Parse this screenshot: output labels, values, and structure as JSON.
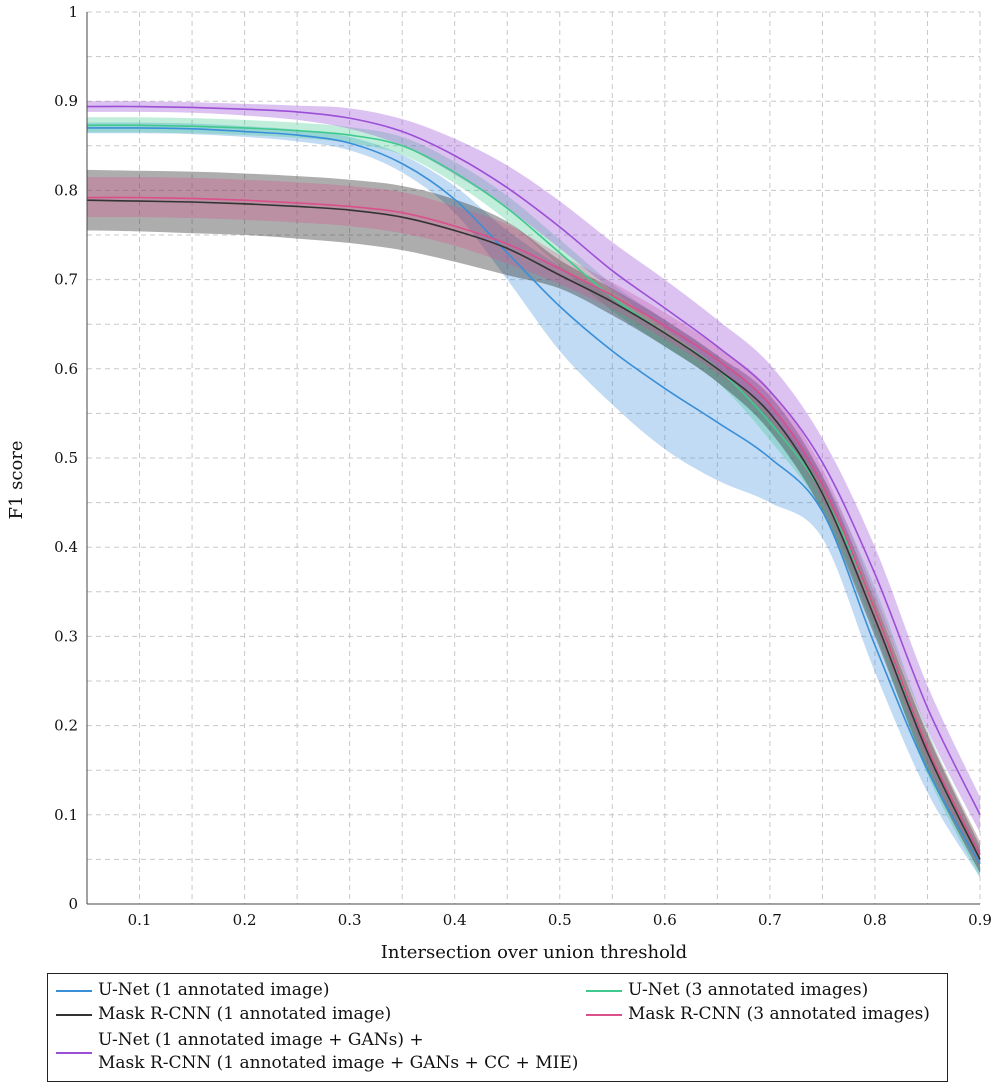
{
  "chart_data": {
    "type": "line",
    "xlabel": "Intersection over union threshold",
    "ylabel": "F1 score",
    "xlim": [
      0.05,
      0.9
    ],
    "ylim": [
      0,
      1
    ],
    "xticks": [
      0.1,
      0.2,
      0.3,
      0.4,
      0.5,
      0.6,
      0.7,
      0.8,
      0.9
    ],
    "xtick_labels": [
      "0.1",
      "0.2",
      "0.3",
      "0.4",
      "0.5",
      "0.6",
      "0.7",
      "0.8",
      "0.9"
    ],
    "yticks": [
      0,
      0.1,
      0.2,
      0.3,
      0.4,
      0.5,
      0.6,
      0.7,
      0.8,
      0.9,
      1
    ],
    "ytick_labels": [
      "0",
      "0.1",
      "0.2",
      "0.3",
      "0.4",
      "0.5",
      "0.6",
      "0.7",
      "0.8",
      "0.9",
      "1"
    ],
    "grid": true,
    "legend_position": "bottom",
    "x": [
      0.05,
      0.1,
      0.15,
      0.2,
      0.25,
      0.3,
      0.35,
      0.4,
      0.45,
      0.5,
      0.55,
      0.6,
      0.65,
      0.7,
      0.75,
      0.8,
      0.85,
      0.9
    ],
    "series": [
      {
        "name": "U-Net (1 annotated image)",
        "color": "#3a8fd9",
        "values": [
          0.87,
          0.87,
          0.869,
          0.866,
          0.862,
          0.853,
          0.83,
          0.79,
          0.73,
          0.67,
          0.62,
          0.578,
          0.54,
          0.5,
          0.44,
          0.29,
          0.15,
          0.045
        ],
        "band_lower": [
          0.864,
          0.864,
          0.863,
          0.86,
          0.855,
          0.845,
          0.82,
          0.775,
          0.7,
          0.62,
          0.56,
          0.51,
          0.475,
          0.45,
          0.41,
          0.26,
          0.125,
          0.03
        ],
        "band_upper": [
          0.876,
          0.876,
          0.875,
          0.872,
          0.868,
          0.86,
          0.84,
          0.805,
          0.755,
          0.715,
          0.68,
          0.64,
          0.6,
          0.55,
          0.47,
          0.32,
          0.175,
          0.06
        ]
      },
      {
        "name": "U-Net (3 annotated images)",
        "color": "#3fc98e",
        "values": [
          0.873,
          0.873,
          0.872,
          0.87,
          0.867,
          0.862,
          0.85,
          0.82,
          0.78,
          0.73,
          0.68,
          0.64,
          0.6,
          0.54,
          0.46,
          0.33,
          0.17,
          0.05
        ],
        "band_lower": [
          0.865,
          0.865,
          0.864,
          0.862,
          0.859,
          0.853,
          0.84,
          0.808,
          0.766,
          0.715,
          0.665,
          0.625,
          0.585,
          0.52,
          0.44,
          0.305,
          0.145,
          0.03
        ],
        "band_upper": [
          0.882,
          0.882,
          0.881,
          0.879,
          0.876,
          0.871,
          0.86,
          0.832,
          0.794,
          0.745,
          0.695,
          0.655,
          0.615,
          0.56,
          0.48,
          0.355,
          0.195,
          0.07
        ]
      },
      {
        "name": "Mask R-CNN (1 annotated image)",
        "color": "#333333",
        "values": [
          0.789,
          0.788,
          0.787,
          0.785,
          0.782,
          0.778,
          0.77,
          0.755,
          0.735,
          0.705,
          0.675,
          0.64,
          0.6,
          0.55,
          0.46,
          0.32,
          0.17,
          0.05
        ],
        "band_lower": [
          0.755,
          0.754,
          0.752,
          0.75,
          0.746,
          0.741,
          0.733,
          0.72,
          0.705,
          0.69,
          0.66,
          0.625,
          0.585,
          0.53,
          0.44,
          0.3,
          0.15,
          0.035
        ],
        "band_upper": [
          0.823,
          0.822,
          0.821,
          0.819,
          0.816,
          0.812,
          0.805,
          0.79,
          0.765,
          0.722,
          0.69,
          0.655,
          0.615,
          0.57,
          0.48,
          0.34,
          0.19,
          0.065
        ]
      },
      {
        "name": "Mask R-CNN (3 annotated images)",
        "color": "#d9508a",
        "values": [
          0.792,
          0.792,
          0.791,
          0.789,
          0.786,
          0.782,
          0.775,
          0.76,
          0.74,
          0.712,
          0.682,
          0.648,
          0.61,
          0.56,
          0.47,
          0.33,
          0.175,
          0.055
        ],
        "band_lower": [
          0.77,
          0.77,
          0.769,
          0.767,
          0.764,
          0.76,
          0.752,
          0.738,
          0.718,
          0.695,
          0.667,
          0.633,
          0.595,
          0.543,
          0.452,
          0.312,
          0.158,
          0.04
        ],
        "band_upper": [
          0.815,
          0.815,
          0.814,
          0.812,
          0.809,
          0.805,
          0.798,
          0.782,
          0.762,
          0.728,
          0.697,
          0.663,
          0.625,
          0.577,
          0.488,
          0.348,
          0.192,
          0.07
        ]
      },
      {
        "name": "U-Net (1 annotated image + GANs) + Mask R-CNN (1 annotated image + GANs + CC + MIE)",
        "legend_lines": [
          "U-Net (1 annotated image + GANs) +",
          "Mask R-CNN (1 annotated image + GANs + CC + MIE)"
        ],
        "color": "#9b4fd6",
        "values": [
          0.894,
          0.894,
          0.893,
          0.891,
          0.888,
          0.881,
          0.866,
          0.839,
          0.803,
          0.759,
          0.71,
          0.668,
          0.625,
          0.575,
          0.495,
          0.37,
          0.22,
          0.1
        ],
        "band_lower": [
          0.888,
          0.888,
          0.887,
          0.884,
          0.879,
          0.869,
          0.85,
          0.818,
          0.78,
          0.735,
          0.688,
          0.645,
          0.602,
          0.55,
          0.468,
          0.34,
          0.195,
          0.08
        ],
        "band_upper": [
          0.9,
          0.9,
          0.899,
          0.897,
          0.895,
          0.892,
          0.88,
          0.858,
          0.828,
          0.788,
          0.742,
          0.7,
          0.655,
          0.605,
          0.522,
          0.4,
          0.245,
          0.12
        ]
      }
    ]
  }
}
